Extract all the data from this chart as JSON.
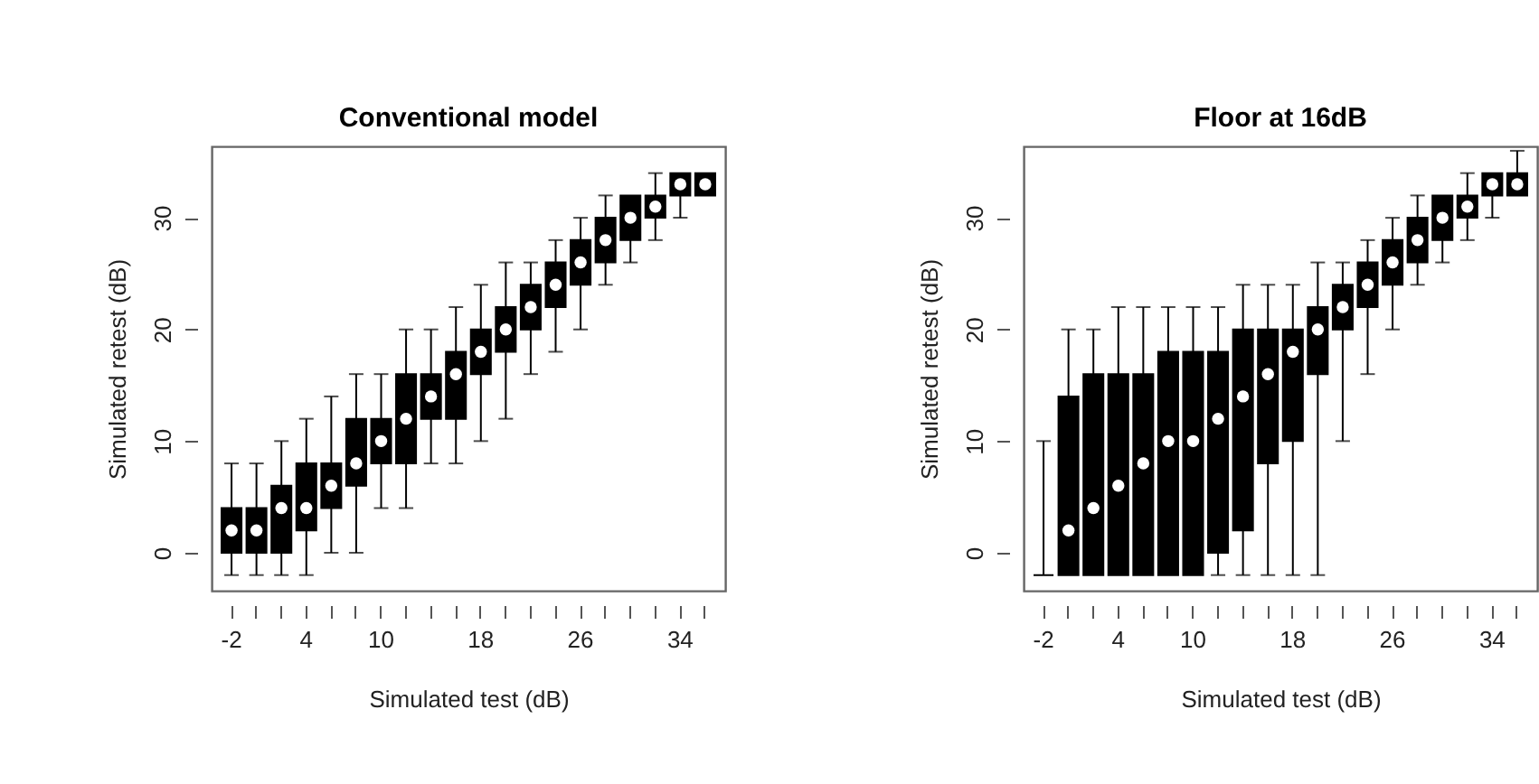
{
  "chart_data": [
    {
      "type": "box",
      "title": "Conventional model",
      "xlabel": "Simulated test (dB)",
      "ylabel": "Simulated retest (dB)",
      "categories": [
        "-2",
        null,
        null,
        "4",
        null,
        null,
        "10",
        null,
        null,
        null,
        "18",
        null,
        null,
        null,
        "26",
        null,
        null,
        null,
        "34",
        null
      ],
      "ylim": [
        -3.4,
        36.4
      ],
      "yticks": [
        0,
        10,
        20,
        30
      ],
      "series": [
        {
          "color": "#000000",
          "boxes": [
            {
              "low": -2,
              "q1": 0,
              "median": 2,
              "q3": 4,
              "high": 8
            },
            {
              "low": -2,
              "q1": 0,
              "median": 2,
              "q3": 4,
              "high": 8
            },
            {
              "low": -2,
              "q1": 0,
              "median": 4,
              "q3": 6,
              "high": 10
            },
            {
              "low": -2,
              "q1": 2,
              "median": 4,
              "q3": 8,
              "high": 12
            },
            {
              "low": 0,
              "q1": 4,
              "median": 6,
              "q3": 8,
              "high": 14
            },
            {
              "low": 0,
              "q1": 6,
              "median": 8,
              "q3": 12,
              "high": 16
            },
            {
              "low": 4,
              "q1": 8,
              "median": 10,
              "q3": 12,
              "high": 16
            },
            {
              "low": 4,
              "q1": 8,
              "median": 12,
              "q3": 16,
              "high": 20
            },
            {
              "low": 8,
              "q1": 12,
              "median": 14,
              "q3": 16,
              "high": 20
            },
            {
              "low": 8,
              "q1": 12,
              "median": 16,
              "q3": 18,
              "high": 22
            },
            {
              "low": 10,
              "q1": 16,
              "median": 18,
              "q3": 20,
              "high": 24
            },
            {
              "low": 12,
              "q1": 18,
              "median": 20,
              "q3": 22,
              "high": 26
            },
            {
              "low": 16,
              "q1": 20,
              "median": 22,
              "q3": 24,
              "high": 26
            },
            {
              "low": 18,
              "q1": 22,
              "median": 24,
              "q3": 26,
              "high": 28
            },
            {
              "low": 20,
              "q1": 24,
              "median": 26,
              "q3": 28,
              "high": 30
            },
            {
              "low": 24,
              "q1": 26,
              "median": 28,
              "q3": 30,
              "high": 32
            },
            {
              "low": 26,
              "q1": 28,
              "median": 30,
              "q3": 32,
              "high": 32
            },
            {
              "low": 28,
              "q1": 30,
              "median": 31,
              "q3": 32,
              "high": 34
            },
            {
              "low": 30,
              "q1": 32,
              "median": 33,
              "q3": 34,
              "high": 34
            },
            {
              "low": 32,
              "q1": 32,
              "median": 33,
              "q3": 34,
              "high": 34
            }
          ]
        }
      ]
    },
    {
      "type": "box",
      "title": "Floor at 16dB",
      "xlabel": "Simulated test (dB)",
      "ylabel": "Simulated retest (dB)",
      "categories": [
        "-2",
        null,
        null,
        "4",
        null,
        null,
        "10",
        null,
        null,
        null,
        "18",
        null,
        null,
        null,
        "26",
        null,
        null,
        null,
        "34",
        null
      ],
      "ylim": [
        -3.4,
        36.4
      ],
      "yticks": [
        0,
        10,
        20,
        30
      ],
      "series": [
        {
          "color": "#000000",
          "boxes": [
            {
              "low": -2,
              "q1": -2,
              "median": -2,
              "q3": -2,
              "high": 10
            },
            {
              "low": -2,
              "q1": -2,
              "median": 2,
              "q3": 14,
              "high": 20
            },
            {
              "low": -2,
              "q1": -2,
              "median": 4,
              "q3": 16,
              "high": 20
            },
            {
              "low": -2,
              "q1": -2,
              "median": 6,
              "q3": 16,
              "high": 22
            },
            {
              "low": -2,
              "q1": -2,
              "median": 8,
              "q3": 16,
              "high": 22
            },
            {
              "low": -2,
              "q1": -2,
              "median": 10,
              "q3": 18,
              "high": 22
            },
            {
              "low": -2,
              "q1": -2,
              "median": 10,
              "q3": 18,
              "high": 22
            },
            {
              "low": -2,
              "q1": 0,
              "median": 12,
              "q3": 18,
              "high": 22
            },
            {
              "low": -2,
              "q1": 2,
              "median": 14,
              "q3": 20,
              "high": 24
            },
            {
              "low": -2,
              "q1": 8,
              "median": 16,
              "q3": 20,
              "high": 24
            },
            {
              "low": -2,
              "q1": 10,
              "median": 18,
              "q3": 20,
              "high": 24
            },
            {
              "low": -2,
              "q1": 16,
              "median": 20,
              "q3": 22,
              "high": 26
            },
            {
              "low": 10,
              "q1": 20,
              "median": 22,
              "q3": 24,
              "high": 26
            },
            {
              "low": 16,
              "q1": 22,
              "median": 24,
              "q3": 26,
              "high": 28
            },
            {
              "low": 20,
              "q1": 24,
              "median": 26,
              "q3": 28,
              "high": 30
            },
            {
              "low": 24,
              "q1": 26,
              "median": 28,
              "q3": 30,
              "high": 32
            },
            {
              "low": 26,
              "q1": 28,
              "median": 30,
              "q3": 32,
              "high": 32
            },
            {
              "low": 28,
              "q1": 30,
              "median": 31,
              "q3": 32,
              "high": 34
            },
            {
              "low": 30,
              "q1": 32,
              "median": 33,
              "q3": 34,
              "high": 34
            },
            {
              "low": 32,
              "q1": 32,
              "median": 33,
              "q3": 34,
              "high": 36
            }
          ]
        }
      ]
    }
  ]
}
